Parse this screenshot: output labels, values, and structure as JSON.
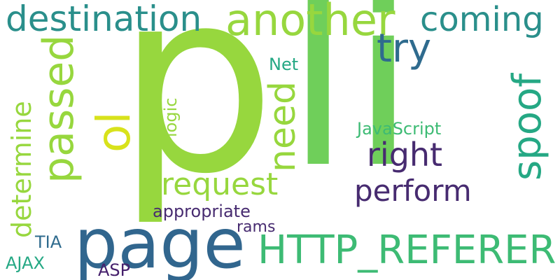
{
  "words": {
    "li": "li",
    "p": "p",
    "page": "page",
    "another": "another",
    "destination": "destination",
    "http_referer": "HTTP_REFERER",
    "passed": "passed",
    "try": "try",
    "coming": "coming",
    "spoof": "spoof",
    "ol": "ol",
    "need": "need",
    "right": "right",
    "request": "request",
    "determine": "determine",
    "perform": "perform",
    "javascript": "JavaScript",
    "logic": "logic",
    "net": "Net",
    "appropriate": "appropriate",
    "rams": "rams",
    "tia": "TIA",
    "ajax": "AJAX",
    "asp": "ASP"
  },
  "colors": {
    "lime": "#6fcf5a",
    "green_yellow": "#97d73e",
    "yellow": "#d8e21b",
    "teal": "#2a8f8b",
    "blue": "#31668e",
    "blue_dark": "#2f6b8e",
    "green": "#3dbb74",
    "emerald": "#25a884",
    "purple": "#472b70",
    "purple_dark": "#46206c",
    "teal_light": "#2ba98a"
  }
}
